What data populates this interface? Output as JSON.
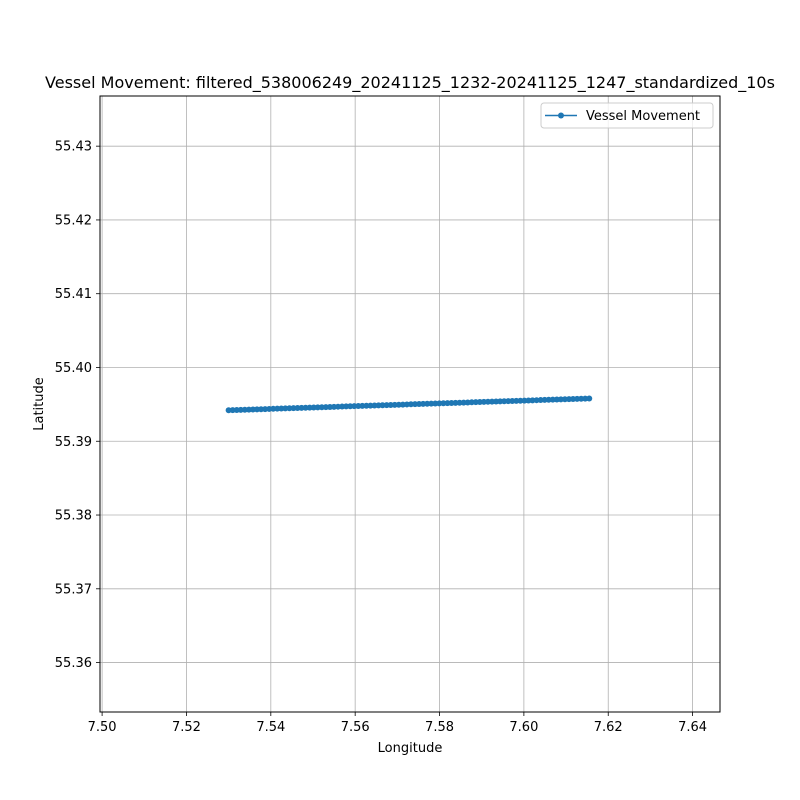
{
  "chart_data": {
    "type": "line",
    "title": "Vessel Movement: filtered_538006249_20241125_1232-20241125_1247_standardized_10s",
    "xlabel": "Longitude",
    "ylabel": "Latitude",
    "xlim": [
      7.4995,
      7.6465
    ],
    "ylim": [
      55.3533,
      55.4368
    ],
    "xticks": [
      "7.50",
      "7.52",
      "7.54",
      "7.56",
      "7.58",
      "7.60",
      "7.62",
      "7.64"
    ],
    "yticks": [
      "55.36",
      "55.37",
      "55.38",
      "55.39",
      "55.40",
      "55.41",
      "55.42",
      "55.43"
    ],
    "grid": true,
    "legend_position": "top-right",
    "series": [
      {
        "name": "Vessel Movement",
        "color": "#1f77b4",
        "marker": "circle",
        "start": [
          7.53,
          55.3942
        ],
        "end": [
          7.6155,
          55.3958
        ],
        "point_count": 90
      }
    ]
  }
}
